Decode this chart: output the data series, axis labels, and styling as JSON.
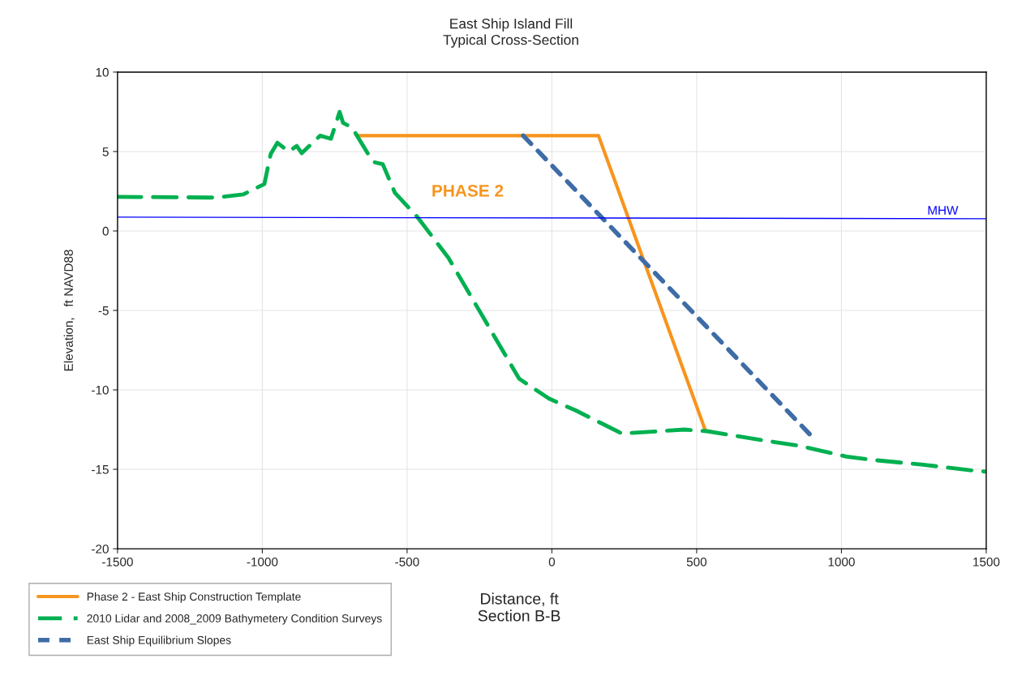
{
  "chart_data": {
    "type": "line",
    "title": "East Ship Island Fill",
    "subtitle": "Typical Cross-Section",
    "xlabel": "Distance, ft\nSection B-B",
    "ylabel": "Elevation,   ft NAVD88",
    "xlim": [
      -1500,
      1500
    ],
    "xticks": [
      -1500,
      -1000,
      -500,
      0,
      500,
      1000,
      1500
    ],
    "ylim": [
      -20,
      10
    ],
    "yticks": [
      -20,
      -15,
      -10,
      -5,
      0,
      5,
      10
    ],
    "grid": true,
    "legend": "bottom left",
    "marker": "none",
    "annotations": [
      "PHASE 2"
    ],
    "series": [
      {
        "name": "Phase 2 - East Ship Construction Template",
        "color": "#f7941d",
        "line_style": "solid",
        "x": [
          -674,
          161,
          531
        ],
        "values": [
          6,
          6,
          -12.6
        ]
      },
      {
        "name": "2010 Lidar and 2008_2009 Bathymetery Condition Surveys",
        "color": "#00b050",
        "line_style": "dashed",
        "x": [
          -1500,
          -1164,
          -1066,
          -993,
          -971,
          -948,
          -909,
          -881,
          -864,
          -800,
          -763,
          -733,
          -721,
          -690,
          -618,
          -584,
          -542,
          -464,
          -357,
          -113,
          -10,
          83,
          242,
          458,
          536,
          738,
          850,
          1018,
          1102,
          1276,
          1466,
          1500
        ],
        "values": [
          2.15,
          2.1,
          2.3,
          2.95,
          4.85,
          5.55,
          5.0,
          5.35,
          4.9,
          6.0,
          5.8,
          7.5,
          6.8,
          6.5,
          4.35,
          4.2,
          2.4,
          0.87,
          -1.7,
          -9.3,
          -10.55,
          -11.3,
          -12.75,
          -12.5,
          -12.6,
          -13.2,
          -13.5,
          -14.2,
          -14.4,
          -14.7,
          -15.1,
          -15.15
        ]
      },
      {
        "name": "East Ship Equilibrium Slopes",
        "color": "#3e6ca6",
        "line_style": "dotted",
        "x": [
          -99,
          912
        ],
        "values": [
          6,
          -13.2
        ]
      },
      {
        "name": "MHW",
        "color": "#0000ff",
        "line_style": "solid",
        "x": [
          -1500,
          1500
        ],
        "values": [
          0.87,
          0.77
        ]
      }
    ]
  }
}
